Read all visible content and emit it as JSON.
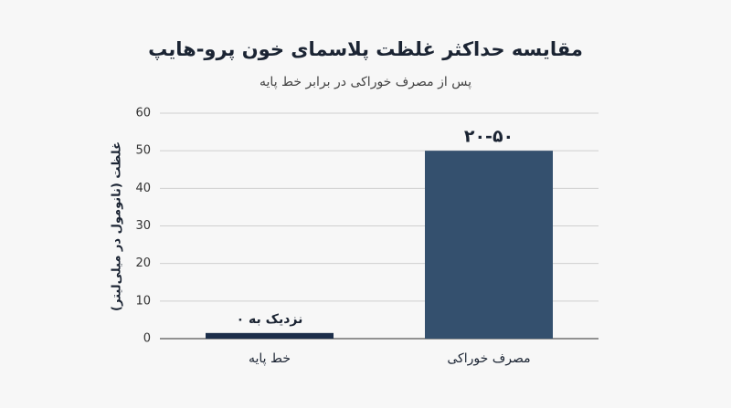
{
  "chart_data": {
    "type": "bar",
    "title": "مقایسه حداکثر غلظت پلاسمای خون پرو-هایپ",
    "subtitle": "پس از مصرف خوراکی در برابر خط پایه",
    "y_label": "غلظت (نانومول در میلی‌لیتر)",
    "categories": [
      "خط پایه",
      "مصرف خوراکی"
    ],
    "values": [
      1.5,
      50
    ],
    "value_labels": [
      "نزدیک به ۰",
      "۲۰-۵۰"
    ],
    "colors": [
      "#1c2e4a",
      "#34506e"
    ],
    "ylim": [
      0,
      60
    ],
    "yticks": [
      0,
      10,
      20,
      30,
      40,
      50,
      60
    ],
    "grid": true
  }
}
